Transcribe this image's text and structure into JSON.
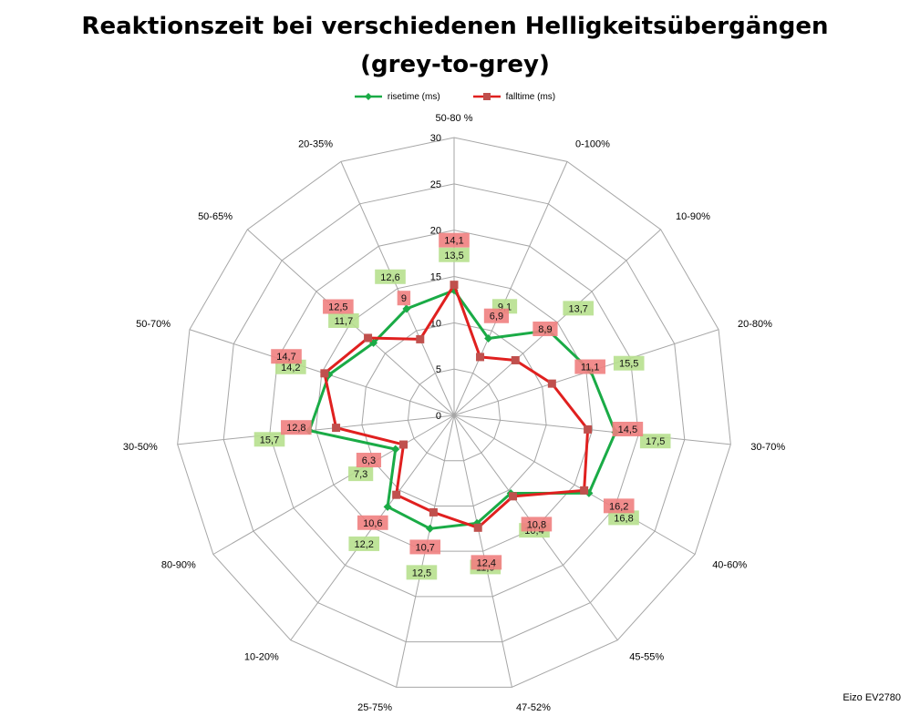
{
  "chart_data": {
    "type": "radar",
    "title_line1": "Reaktionszeit bei verschiedenen Helligkeitsübergängen",
    "title_line2": "(grey-to-grey)",
    "categories": [
      "50-80 %",
      "0-100%",
      "10-90%",
      "20-80%",
      "30-70%",
      "40-60%",
      "45-55%",
      "47-52%",
      "25-75%",
      "10-20%",
      "80-90%",
      "30-50%",
      "50-70%",
      "50-65%",
      "20-35%"
    ],
    "radial_axis": {
      "min": 0,
      "max": 30,
      "step": 5,
      "ticks": [
        "0",
        "5",
        "10",
        "15",
        "20",
        "25",
        "30"
      ]
    },
    "series": [
      {
        "name": "risetime (ms)",
        "color": "#1aab46",
        "label_bg": "#b7e08e",
        "marker": "diamond",
        "values": [
          13.5,
          9.1,
          13.7,
          15.5,
          17.5,
          16.8,
          10.4,
          11.9,
          12.5,
          12.2,
          7.3,
          15.7,
          14.2,
          11.7,
          12.6
        ],
        "labels": [
          "13,5",
          "9,1",
          "13,7",
          "15,5",
          "17,5",
          "16,8",
          "10,4",
          "11,9",
          "12,5",
          "12,2",
          "7,3",
          "15,7",
          "14,2",
          "11,7",
          "12,6"
        ]
      },
      {
        "name": "falltime (ms)",
        "color": "#e0201f",
        "label_bg": "#f08080",
        "marker": "square",
        "values": [
          14.1,
          6.9,
          8.9,
          11.1,
          14.5,
          16.2,
          10.8,
          12.4,
          10.7,
          10.6,
          6.3,
          12.8,
          14.7,
          12.5,
          9.0
        ],
        "labels": [
          "14,1",
          "6,9",
          "8,9",
          "11,1",
          "14,5",
          "16,2",
          "10,8",
          "12,4",
          "10,7",
          "10,6",
          "6,3",
          "12,8",
          "14,7",
          "12,5",
          "9"
        ]
      }
    ],
    "legend_position": "top",
    "grid": true,
    "footnote": "Eizo EV2780"
  }
}
